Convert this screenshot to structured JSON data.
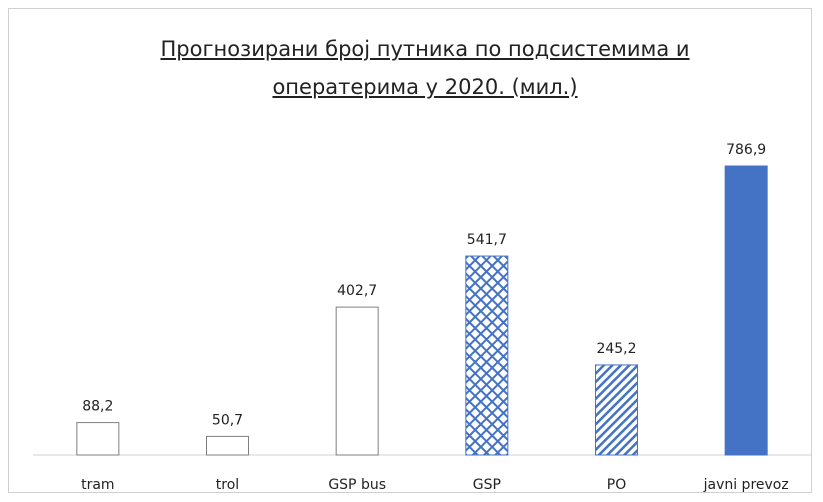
{
  "chart_data": {
    "type": "bar",
    "title": "Прогнозирани број путника по подсистемима и оператерима у 2020. (мил.)",
    "categories": [
      "tram",
      "trol",
      "GSP bus",
      "GSP",
      "PO",
      "javni prevoz"
    ],
    "values": [
      88.2,
      50.7,
      402.7,
      541.7,
      245.2,
      786.9
    ],
    "value_labels": [
      "88,2",
      "50,7",
      "402,7",
      "541,7",
      "245,2",
      "786,9"
    ],
    "fills": [
      "outline",
      "outline",
      "outline",
      "crosshatch",
      "diagonal",
      "solid"
    ],
    "color": "#4472c4"
  }
}
